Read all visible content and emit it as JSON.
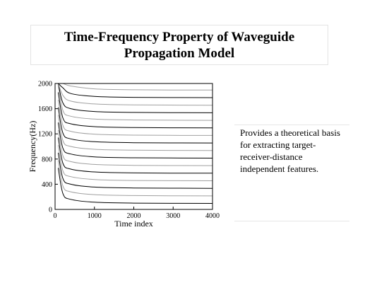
{
  "slide": {
    "title_line1": "Time-Frequency Property of Waveguide",
    "title_line2": "Propagation Model",
    "side_text_lines": [
      "Provides a theoretical basis",
      "for extracting target-",
      "receiver-distance",
      "independent features."
    ]
  },
  "chart_data": {
    "type": "line",
    "title": "",
    "xlabel": "Time index",
    "ylabel": "Frequency(Hz)",
    "xlim": [
      0,
      4000
    ],
    "ylim": [
      0,
      2000
    ],
    "xticks": [
      0,
      1000,
      2000,
      3000,
      4000
    ],
    "yticks": [
      0,
      400,
      800,
      1200,
      1600,
      2000
    ],
    "grid": false,
    "legend": "none",
    "line_colors": [
      "#000000",
      "#a0a0a0"
    ],
    "series": [
      {
        "x": [
          80,
          200,
          400,
          1000,
          2000,
          4000
        ],
        "y": [
          660,
          250,
          160,
          115,
          100,
          95
        ]
      },
      {
        "x": [
          80,
          200,
          400,
          1000,
          2000,
          4000
        ],
        "y": [
          780,
          370,
          280,
          235,
          220,
          215
        ]
      },
      {
        "x": [
          80,
          200,
          400,
          1000,
          2000,
          4000
        ],
        "y": [
          900,
          490,
          400,
          355,
          340,
          335
        ]
      },
      {
        "x": [
          80,
          200,
          400,
          1000,
          2000,
          4000
        ],
        "y": [
          1020,
          610,
          520,
          475,
          460,
          455
        ]
      },
      {
        "x": [
          80,
          200,
          400,
          1000,
          2000,
          4000
        ],
        "y": [
          1140,
          730,
          640,
          595,
          580,
          575
        ]
      },
      {
        "x": [
          80,
          200,
          400,
          1000,
          2000,
          4000
        ],
        "y": [
          1260,
          850,
          760,
          715,
          700,
          695
        ]
      },
      {
        "x": [
          80,
          200,
          400,
          1000,
          2000,
          4000
        ],
        "y": [
          1380,
          970,
          880,
          835,
          820,
          815
        ]
      },
      {
        "x": [
          80,
          200,
          400,
          1000,
          2000,
          4000
        ],
        "y": [
          1500,
          1090,
          1000,
          955,
          940,
          935
        ]
      },
      {
        "x": [
          80,
          200,
          400,
          1000,
          2000,
          4000
        ],
        "y": [
          1620,
          1210,
          1120,
          1075,
          1060,
          1055
        ]
      },
      {
        "x": [
          80,
          200,
          400,
          1000,
          2000,
          4000
        ],
        "y": [
          1740,
          1330,
          1240,
          1195,
          1180,
          1175
        ]
      },
      {
        "x": [
          80,
          200,
          400,
          1000,
          2000,
          4000
        ],
        "y": [
          1860,
          1450,
          1360,
          1315,
          1300,
          1295
        ]
      },
      {
        "x": [
          80,
          200,
          400,
          1000,
          2000,
          4000
        ],
        "y": [
          1980,
          1570,
          1480,
          1435,
          1420,
          1415
        ]
      },
      {
        "x": [
          80,
          200,
          400,
          1000,
          2000,
          4000
        ],
        "y": [
          2000,
          1690,
          1600,
          1555,
          1540,
          1535
        ]
      },
      {
        "x": [
          80,
          200,
          400,
          1000,
          2000,
          4000
        ],
        "y": [
          2000,
          1810,
          1720,
          1675,
          1660,
          1655
        ]
      },
      {
        "x": [
          80,
          200,
          400,
          1000,
          2000,
          4000
        ],
        "y": [
          2000,
          1930,
          1840,
          1795,
          1780,
          1775
        ]
      },
      {
        "x": [
          80,
          200,
          400,
          1000,
          2000,
          4000
        ],
        "y": [
          2000,
          2000,
          1960,
          1915,
          1900,
          1895
        ]
      }
    ]
  }
}
